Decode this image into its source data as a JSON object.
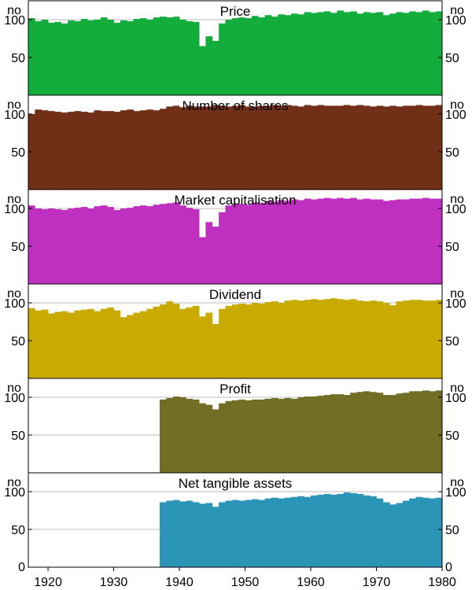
{
  "figure": {
    "y_unit_left": "no",
    "y_unit_right": "no",
    "y_ticks": [
      50,
      100
    ],
    "y_zero_label": "0",
    "x_tick_labels": [
      "1920",
      "1930",
      "1940",
      "1950",
      "1960",
      "1970",
      "1980"
    ],
    "x_ticks": [
      1920,
      1930,
      1940,
      1950,
      1960,
      1970,
      1980
    ]
  },
  "chart_data": [
    {
      "type": "bar",
      "title": "Price",
      "color": "#13ad3c",
      "xlim": [
        1917,
        1980
      ],
      "ylim": [
        0,
        125
      ],
      "x": [
        1917,
        1918,
        1919,
        1920,
        1921,
        1922,
        1923,
        1924,
        1925,
        1926,
        1927,
        1928,
        1929,
        1930,
        1931,
        1932,
        1933,
        1934,
        1935,
        1936,
        1937,
        1938,
        1939,
        1940,
        1941,
        1942,
        1943,
        1944,
        1945,
        1946,
        1947,
        1948,
        1949,
        1950,
        1951,
        1952,
        1953,
        1954,
        1955,
        1956,
        1957,
        1958,
        1959,
        1960,
        1961,
        1962,
        1963,
        1964,
        1965,
        1966,
        1967,
        1968,
        1969,
        1970,
        1971,
        1972,
        1973,
        1974,
        1975,
        1976,
        1977,
        1978,
        1979
      ],
      "values": [
        102,
        98,
        100,
        96,
        97,
        95,
        99,
        98,
        101,
        99,
        100,
        103,
        100,
        96,
        99,
        98,
        101,
        102,
        100,
        103,
        104,
        103,
        104,
        100,
        98,
        97,
        65,
        78,
        72,
        95,
        100,
        102,
        103,
        102,
        105,
        103,
        106,
        104,
        107,
        106,
        108,
        107,
        110,
        109,
        110,
        111,
        109,
        112,
        110,
        111,
        108,
        110,
        109,
        110,
        106,
        108,
        110,
        109,
        111,
        110,
        112,
        110,
        111
      ]
    },
    {
      "type": "bar",
      "title": "Number of shares",
      "color": "#722f18",
      "xlim": [
        1917,
        1980
      ],
      "ylim": [
        0,
        125
      ],
      "x": [
        1917,
        1918,
        1919,
        1920,
        1921,
        1922,
        1923,
        1924,
        1925,
        1926,
        1927,
        1928,
        1929,
        1930,
        1931,
        1932,
        1933,
        1934,
        1935,
        1936,
        1937,
        1938,
        1939,
        1940,
        1941,
        1942,
        1943,
        1944,
        1945,
        1946,
        1947,
        1948,
        1949,
        1950,
        1951,
        1952,
        1953,
        1954,
        1955,
        1956,
        1957,
        1958,
        1959,
        1960,
        1961,
        1962,
        1963,
        1964,
        1965,
        1966,
        1967,
        1968,
        1969,
        1970,
        1971,
        1972,
        1973,
        1974,
        1975,
        1976,
        1977,
        1978,
        1979
      ],
      "values": [
        100,
        106,
        105,
        104,
        103,
        102,
        103,
        104,
        103,
        102,
        105,
        104,
        104,
        103,
        105,
        106,
        104,
        105,
        106,
        105,
        107,
        110,
        111,
        109,
        111,
        110,
        110,
        110,
        112,
        111,
        110,
        111,
        112,
        110,
        110,
        111,
        111,
        112,
        111,
        112,
        111,
        110,
        112,
        111,
        112,
        111,
        111,
        111,
        112,
        111,
        112,
        111,
        110,
        111,
        110,
        111,
        110,
        111,
        111,
        112,
        111,
        111,
        112
      ]
    },
    {
      "type": "bar",
      "title": "Market capitalisation",
      "color": "#c030c0",
      "xlim": [
        1917,
        1980
      ],
      "ylim": [
        0,
        125
      ],
      "x": [
        1917,
        1918,
        1919,
        1920,
        1921,
        1922,
        1923,
        1924,
        1925,
        1926,
        1927,
        1928,
        1929,
        1930,
        1931,
        1932,
        1933,
        1934,
        1935,
        1936,
        1937,
        1938,
        1939,
        1940,
        1941,
        1942,
        1943,
        1944,
        1945,
        1946,
        1947,
        1948,
        1949,
        1950,
        1951,
        1952,
        1953,
        1954,
        1955,
        1956,
        1957,
        1958,
        1959,
        1960,
        1961,
        1962,
        1963,
        1964,
        1965,
        1966,
        1967,
        1968,
        1969,
        1970,
        1971,
        1972,
        1973,
        1974,
        1975,
        1976,
        1977,
        1978,
        1979
      ],
      "values": [
        104,
        100,
        99,
        100,
        99,
        98,
        100,
        101,
        102,
        100,
        103,
        104,
        102,
        98,
        100,
        101,
        103,
        104,
        103,
        105,
        106,
        107,
        108,
        104,
        101,
        99,
        62,
        82,
        76,
        95,
        104,
        106,
        106,
        105,
        108,
        107,
        110,
        109,
        111,
        110,
        112,
        111,
        113,
        112,
        113,
        114,
        113,
        114,
        113,
        114,
        112,
        113,
        112,
        112,
        110,
        111,
        112,
        112,
        113,
        113,
        114,
        113,
        113
      ]
    },
    {
      "type": "bar",
      "title": "Dividend",
      "color": "#c8aa00",
      "xlim": [
        1917,
        1980
      ],
      "ylim": [
        0,
        125
      ],
      "x": [
        1917,
        1918,
        1919,
        1920,
        1921,
        1922,
        1923,
        1924,
        1925,
        1926,
        1927,
        1928,
        1929,
        1930,
        1931,
        1932,
        1933,
        1934,
        1935,
        1936,
        1937,
        1938,
        1939,
        1940,
        1941,
        1942,
        1943,
        1944,
        1945,
        1946,
        1947,
        1948,
        1949,
        1950,
        1951,
        1952,
        1953,
        1954,
        1955,
        1956,
        1957,
        1958,
        1959,
        1960,
        1961,
        1962,
        1963,
        1964,
        1965,
        1966,
        1967,
        1968,
        1969,
        1970,
        1971,
        1972,
        1973,
        1974,
        1975,
        1976,
        1977,
        1978,
        1979
      ],
      "values": [
        93,
        90,
        91,
        86,
        88,
        89,
        87,
        90,
        91,
        92,
        89,
        92,
        94,
        90,
        81,
        84,
        87,
        89,
        92,
        95,
        98,
        102,
        99,
        92,
        94,
        96,
        82,
        87,
        72,
        92,
        96,
        98,
        99,
        98,
        100,
        99,
        101,
        102,
        100,
        103,
        104,
        103,
        104,
        105,
        104,
        105,
        106,
        105,
        104,
        105,
        103,
        102,
        103,
        102,
        100,
        97,
        102,
        103,
        104,
        104,
        103,
        103,
        104
      ]
    },
    {
      "type": "bar",
      "title": "Profit",
      "color": "#726e25",
      "xlim": [
        1917,
        1980
      ],
      "ylim": [
        0,
        125
      ],
      "x": [
        1937,
        1938,
        1939,
        1940,
        1941,
        1942,
        1943,
        1944,
        1945,
        1946,
        1947,
        1948,
        1949,
        1950,
        1951,
        1952,
        1953,
        1954,
        1955,
        1956,
        1957,
        1958,
        1959,
        1960,
        1961,
        1962,
        1963,
        1964,
        1965,
        1966,
        1967,
        1968,
        1969,
        1970,
        1971,
        1972,
        1973,
        1974,
        1975,
        1976,
        1977,
        1978,
        1979
      ],
      "values": [
        97,
        99,
        101,
        100,
        98,
        97,
        92,
        90,
        84,
        92,
        95,
        96,
        97,
        96,
        97,
        97,
        98,
        99,
        98,
        99,
        98,
        100,
        101,
        101,
        102,
        103,
        104,
        104,
        103,
        106,
        107,
        108,
        107,
        106,
        103,
        103,
        105,
        106,
        108,
        108,
        109,
        108,
        109
      ]
    },
    {
      "type": "bar",
      "title": "Net tangible assets",
      "color": "#2b95b8",
      "xlim": [
        1917,
        1980
      ],
      "ylim": [
        0,
        125
      ],
      "x": [
        1937,
        1938,
        1939,
        1940,
        1941,
        1942,
        1943,
        1944,
        1945,
        1946,
        1947,
        1948,
        1949,
        1950,
        1951,
        1952,
        1953,
        1954,
        1955,
        1956,
        1957,
        1958,
        1959,
        1960,
        1961,
        1962,
        1963,
        1964,
        1965,
        1966,
        1967,
        1968,
        1969,
        1970,
        1971,
        1972,
        1973,
        1974,
        1975,
        1976,
        1977,
        1978,
        1979
      ],
      "values": [
        86,
        88,
        89,
        87,
        88,
        86,
        84,
        85,
        80,
        86,
        88,
        89,
        88,
        89,
        90,
        89,
        91,
        92,
        91,
        92,
        93,
        94,
        93,
        95,
        96,
        97,
        96,
        97,
        99,
        98,
        97,
        95,
        94,
        91,
        86,
        83,
        85,
        88,
        91,
        93,
        92,
        91,
        92
      ]
    }
  ]
}
